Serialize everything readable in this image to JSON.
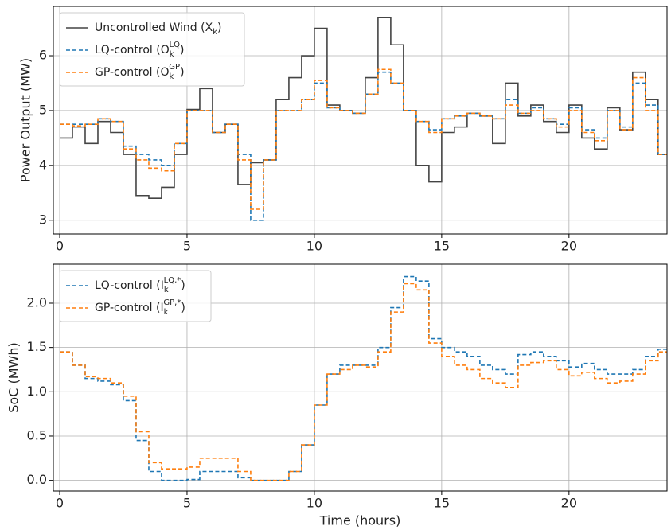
{
  "chart_data": [
    {
      "type": "step",
      "ylabel": "Power Output (MW)",
      "x": [
        0,
        0.5,
        1,
        1.5,
        2,
        2.5,
        3,
        3.5,
        4,
        4.5,
        5,
        5.5,
        6,
        6.5,
        7,
        7.5,
        8,
        8.5,
        9,
        9.5,
        10,
        10.5,
        11,
        11.5,
        12,
        12.5,
        13,
        13.5,
        14,
        14.5,
        15,
        15.5,
        16,
        16.5,
        17,
        17.5,
        18,
        18.5,
        19,
        19.5,
        20,
        20.5,
        21,
        21.5,
        22,
        22.5,
        23,
        23.5,
        24
      ],
      "xlim": [
        -0.25,
        23.85
      ],
      "xticks": [
        0,
        5,
        10,
        15,
        20
      ],
      "ylim": [
        2.75,
        6.9
      ],
      "yticks": [
        3,
        4,
        5,
        6
      ],
      "grid": true,
      "legend": "upper left",
      "series": [
        {
          "name": "Uncontrolled Wind (X_k)",
          "color": "#444444",
          "dash": "solid",
          "values": [
            4.5,
            4.7,
            4.4,
            4.8,
            4.6,
            4.2,
            3.45,
            3.4,
            3.6,
            4.2,
            5.02,
            5.4,
            4.6,
            4.75,
            3.65,
            4.05,
            4.1,
            5.2,
            5.6,
            6.0,
            6.5,
            5.1,
            5.0,
            4.95,
            5.6,
            6.7,
            6.2,
            5.0,
            4.0,
            3.7,
            4.6,
            4.7,
            4.95,
            4.9,
            4.4,
            5.5,
            4.9,
            5.1,
            4.8,
            4.6,
            5.1,
            4.5,
            4.3,
            5.05,
            4.65,
            5.7,
            5.2,
            4.2,
            4.2
          ]
        },
        {
          "name": "LQ-control (O_k^LQ)",
          "color": "#1f77b4",
          "dash": "dashed",
          "values": [
            4.75,
            4.75,
            4.75,
            4.85,
            4.8,
            4.35,
            4.2,
            4.1,
            4.0,
            4.4,
            5.0,
            5.0,
            4.6,
            4.75,
            4.2,
            3.0,
            4.1,
            5.0,
            5.0,
            5.2,
            5.5,
            5.05,
            5.0,
            4.95,
            5.3,
            5.7,
            5.5,
            5.0,
            4.8,
            4.65,
            4.85,
            4.9,
            4.95,
            4.9,
            4.85,
            5.2,
            4.95,
            5.05,
            4.85,
            4.75,
            5.05,
            4.65,
            4.5,
            5.0,
            4.7,
            5.5,
            5.1,
            4.2,
            4.2
          ]
        },
        {
          "name": "GP-control (O_k^GP)",
          "color": "#ff7f0e",
          "dash": "dashed",
          "values": [
            4.75,
            4.72,
            4.75,
            4.85,
            4.8,
            4.3,
            4.1,
            3.95,
            3.9,
            4.4,
            5.0,
            5.0,
            4.6,
            4.75,
            4.1,
            3.2,
            4.1,
            5.0,
            5.0,
            5.2,
            5.55,
            5.05,
            5.0,
            4.95,
            5.3,
            5.75,
            5.5,
            5.0,
            4.8,
            4.6,
            4.85,
            4.9,
            4.95,
            4.9,
            4.85,
            5.1,
            4.95,
            5.0,
            4.85,
            4.7,
            5.0,
            4.6,
            4.45,
            5.0,
            4.65,
            5.6,
            5.0,
            4.2,
            4.2
          ]
        }
      ]
    },
    {
      "type": "step",
      "xlabel": "Time (hours)",
      "ylabel": "SoC (MWh)",
      "x": [
        0,
        0.5,
        1,
        1.5,
        2,
        2.5,
        3,
        3.5,
        4,
        4.5,
        5,
        5.5,
        6,
        6.5,
        7,
        7.5,
        8,
        8.5,
        9,
        9.5,
        10,
        10.5,
        11,
        11.5,
        12,
        12.5,
        13,
        13.5,
        14,
        14.5,
        15,
        15.5,
        16,
        16.5,
        17,
        17.5,
        18,
        18.5,
        19,
        19.5,
        20,
        20.5,
        21,
        21.5,
        22,
        22.5,
        23,
        23.5,
        24
      ],
      "xlim": [
        -0.25,
        23.85
      ],
      "xticks": [
        0,
        5,
        10,
        15,
        20
      ],
      "ylim": [
        -0.12,
        2.44
      ],
      "yticks": [
        {
          "value": 0,
          "label": "0.0"
        },
        0.5,
        {
          "value": 1,
          "label": "1.0"
        },
        1.5,
        {
          "value": 2,
          "label": "2.0"
        }
      ],
      "grid": true,
      "legend": "upper left",
      "series": [
        {
          "name": "LQ-control (I_k^LQ,*)",
          "color": "#1f77b4",
          "dash": "dashed",
          "values": [
            1.45,
            1.3,
            1.15,
            1.12,
            1.08,
            0.9,
            0.45,
            0.1,
            0.0,
            0.0,
            0.01,
            0.1,
            0.1,
            0.1,
            0.03,
            0.0,
            0.0,
            0.0,
            0.1,
            0.4,
            0.85,
            1.2,
            1.3,
            1.3,
            1.3,
            1.5,
            1.95,
            2.3,
            2.25,
            1.6,
            1.5,
            1.45,
            1.4,
            1.3,
            1.25,
            1.2,
            1.42,
            1.45,
            1.4,
            1.35,
            1.28,
            1.32,
            1.25,
            1.2,
            1.2,
            1.25,
            1.4,
            1.48,
            1.48
          ]
        },
        {
          "name": "GP-control (I_k^GP,*)",
          "color": "#ff7f0e",
          "dash": "dashed",
          "values": [
            1.45,
            1.3,
            1.17,
            1.15,
            1.1,
            0.95,
            0.55,
            0.2,
            0.13,
            0.13,
            0.15,
            0.25,
            0.25,
            0.25,
            0.1,
            0.0,
            0.0,
            0.0,
            0.1,
            0.4,
            0.85,
            1.2,
            1.25,
            1.3,
            1.28,
            1.45,
            1.9,
            2.22,
            2.15,
            1.55,
            1.4,
            1.3,
            1.25,
            1.15,
            1.1,
            1.05,
            1.3,
            1.33,
            1.35,
            1.25,
            1.18,
            1.22,
            1.15,
            1.1,
            1.12,
            1.2,
            1.35,
            1.45,
            1.45
          ]
        }
      ]
    }
  ]
}
